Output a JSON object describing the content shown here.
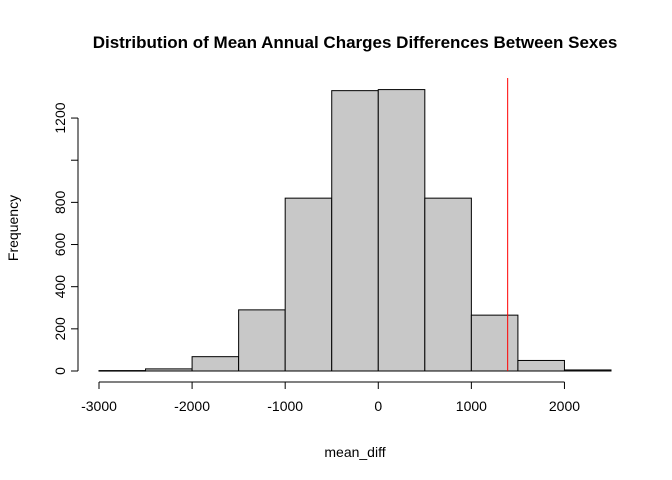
{
  "chart_data": {
    "type": "bar",
    "title": "Distribution of Mean Annual Charges Differences Between Sexes",
    "xlabel": "mean_diff",
    "ylabel": "Frequency",
    "bins": [
      {
        "start": -3000,
        "end": -2500,
        "count": 2
      },
      {
        "start": -2500,
        "end": -2000,
        "count": 10
      },
      {
        "start": -2000,
        "end": -1500,
        "count": 68
      },
      {
        "start": -1500,
        "end": -1000,
        "count": 290
      },
      {
        "start": -1000,
        "end": -500,
        "count": 820
      },
      {
        "start": -500,
        "end": 0,
        "count": 1330
      },
      {
        "start": 0,
        "end": 500,
        "count": 1335
      },
      {
        "start": 500,
        "end": 1000,
        "count": 820
      },
      {
        "start": 1000,
        "end": 1500,
        "count": 265
      },
      {
        "start": 1500,
        "end": 2000,
        "count": 50
      },
      {
        "start": 2000,
        "end": 2500,
        "count": 5
      }
    ],
    "reference_line": {
      "x": 1390,
      "color": "#ff0000"
    },
    "x_ticks": [
      -3000,
      -2000,
      -1000,
      0,
      1000,
      2000
    ],
    "x_tick_labels": [
      "-3000",
      "-2000",
      "-1000",
      "0",
      "1000",
      "2000"
    ],
    "y_ticks": [
      0,
      200,
      400,
      600,
      800,
      1000,
      1200
    ],
    "y_tick_labels": [
      "0",
      "200",
      "400",
      "600",
      "800",
      "",
      "1200"
    ],
    "xlim": [
      -3000,
      2500
    ],
    "ylim": [
      0,
      1390
    ],
    "bar_color": "#c8c8c8",
    "grid": false
  }
}
